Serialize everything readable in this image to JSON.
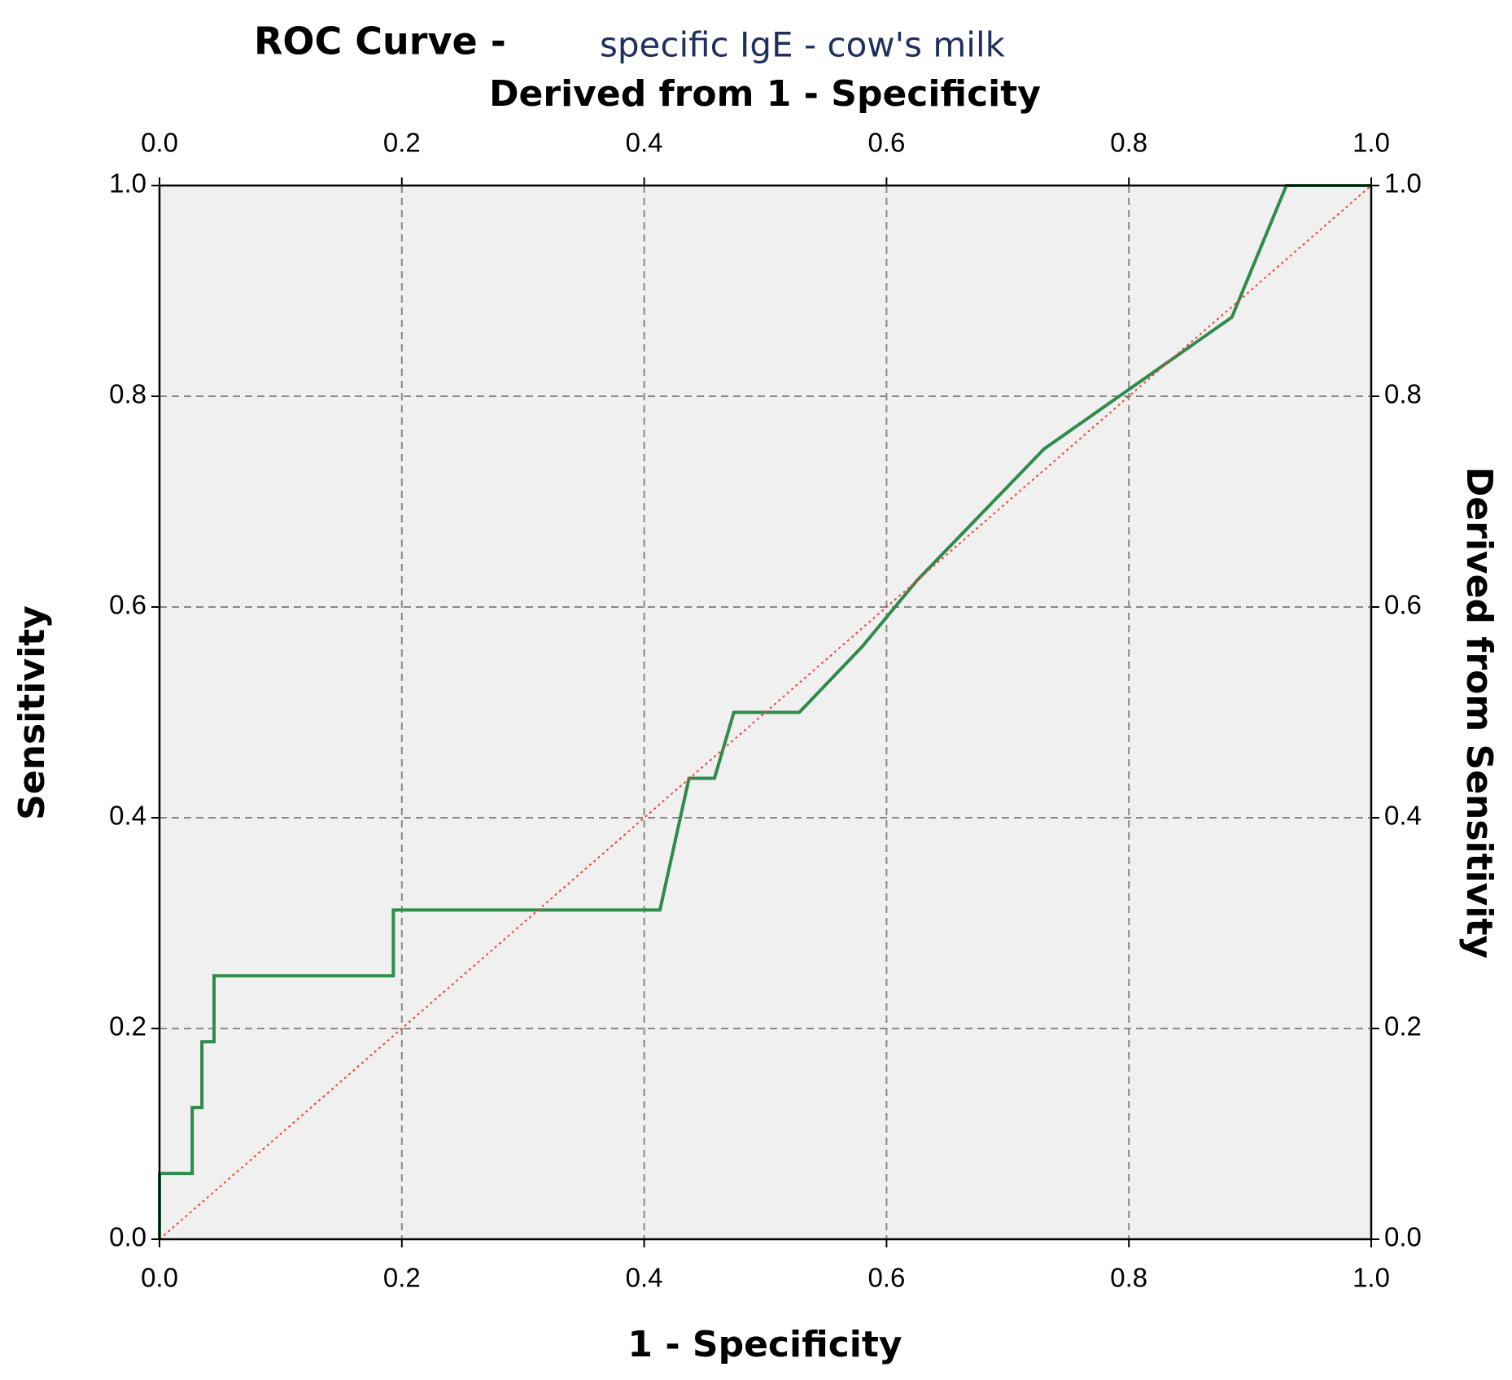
{
  "chart_data": {
    "type": "line",
    "title": "ROC Curve -",
    "subtitle": "specific IgE - cow's milk",
    "xlabel": "1 - Specificity",
    "ylabel": "Sensitivity",
    "x2label": "Derived from 1 - Specificity",
    "y2label": "Derived from Sensitivity",
    "xlim": [
      0,
      1
    ],
    "ylim": [
      0,
      1
    ],
    "x2lim": [
      0,
      1
    ],
    "y2lim": [
      0,
      1
    ],
    "xticks": [
      {
        "value": 0,
        "label": "0.0"
      },
      {
        "value": 0.2,
        "label": "0.2"
      },
      {
        "value": 0.4,
        "label": "0.4"
      },
      {
        "value": 0.6,
        "label": "0.6"
      },
      {
        "value": 0.8,
        "label": "0.8"
      },
      {
        "value": 1,
        "label": "1.0"
      }
    ],
    "yticks": [
      {
        "value": 0,
        "label": "0.0"
      },
      {
        "value": 0.2,
        "label": "0.2"
      },
      {
        "value": 0.4,
        "label": "0.4"
      },
      {
        "value": 0.6,
        "label": "0.6"
      },
      {
        "value": 0.8,
        "label": "0.8"
      },
      {
        "value": 1,
        "label": "1.0"
      }
    ],
    "x2ticks": [
      {
        "value": 0,
        "label": "0.0"
      },
      {
        "value": 0.2,
        "label": "0.2"
      },
      {
        "value": 0.4,
        "label": "0.4"
      },
      {
        "value": 0.6,
        "label": "0.6"
      },
      {
        "value": 0.8,
        "label": "0.8"
      },
      {
        "value": 1,
        "label": "1.0"
      }
    ],
    "y2ticks": [
      {
        "value": 0,
        "label": "0.0"
      },
      {
        "value": 0.2,
        "label": "0.2"
      },
      {
        "value": 0.4,
        "label": "0.4"
      },
      {
        "value": 0.6,
        "label": "0.6"
      },
      {
        "value": 0.8,
        "label": "0.8"
      },
      {
        "value": 1,
        "label": "1.0"
      }
    ],
    "grid": true,
    "series": [
      {
        "color": "#2e8b4a",
        "style": "solid",
        "x": [
          0,
          0,
          0.027,
          0.027,
          0.035,
          0.035,
          0.045,
          0.045,
          0.193,
          0.193,
          0.413,
          0.437,
          0.458,
          0.474,
          0.528,
          0.58,
          0.625,
          0.73,
          0.885,
          0.93,
          1.0
        ],
        "values": [
          0,
          0.0625,
          0.0625,
          0.125,
          0.125,
          0.1875,
          0.1875,
          0.25,
          0.25,
          0.3125,
          0.3125,
          0.4375,
          0.4375,
          0.5,
          0.5,
          0.5625,
          0.625,
          0.75,
          0.875,
          1.0,
          1.0
        ]
      },
      {
        "color": "#f04040",
        "style": "dotted",
        "x": [
          0,
          1
        ],
        "values": [
          0,
          1
        ]
      }
    ]
  }
}
